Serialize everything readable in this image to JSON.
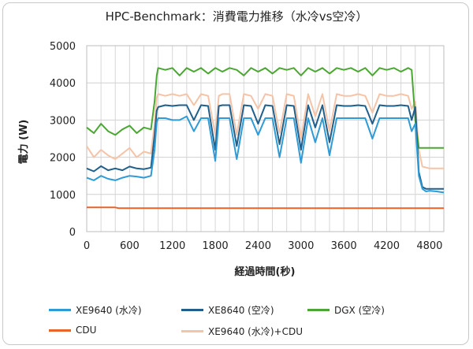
{
  "chart_data": {
    "type": "line",
    "title": "HPC-Benchmark：消費電力推移（水冷vs空冷）",
    "xlabel": "経過時間(秒)",
    "ylabel": "電力 (W)",
    "xlim": [
      0,
      5000
    ],
    "ylim": [
      0,
      5000
    ],
    "xticks": [
      "0",
      "600",
      "1200",
      "1800",
      "2400",
      "3000",
      "3600",
      "4200",
      "4800"
    ],
    "yticks": [
      "0",
      "1000",
      "2000",
      "3000",
      "4000",
      "5000"
    ],
    "series": [
      {
        "name": "XE9640 (水冷)",
        "color": "#2e9bd6",
        "x": [
          0,
          100,
          200,
          300,
          400,
          500,
          600,
          700,
          800,
          900,
          950,
          980,
          1000,
          1100,
          1200,
          1300,
          1400,
          1500,
          1600,
          1700,
          1800,
          1850,
          1900,
          2000,
          2100,
          2200,
          2300,
          2400,
          2500,
          2600,
          2700,
          2800,
          2900,
          3000,
          3100,
          3200,
          3300,
          3400,
          3500,
          3600,
          3700,
          3800,
          3900,
          4000,
          4100,
          4200,
          4300,
          4400,
          4500,
          4550,
          4600,
          4650,
          4700,
          4750,
          4800,
          4900,
          5000
        ],
        "y": [
          1450,
          1380,
          1500,
          1420,
          1380,
          1450,
          1500,
          1480,
          1450,
          1500,
          2200,
          2950,
          3050,
          3050,
          3000,
          3000,
          3100,
          2700,
          3050,
          3050,
          1900,
          3050,
          3050,
          3050,
          1950,
          3050,
          3050,
          2600,
          3050,
          3050,
          2000,
          3050,
          3050,
          1850,
          3050,
          2400,
          3050,
          2050,
          3050,
          3050,
          3050,
          3050,
          3050,
          2500,
          3050,
          3050,
          3050,
          3050,
          3050,
          2700,
          2900,
          1500,
          1150,
          1080,
          1100,
          1080,
          1050
        ]
      },
      {
        "name": "XE8640 (空冷)",
        "color": "#1f5f8b",
        "x": [
          0,
          100,
          200,
          300,
          400,
          500,
          600,
          700,
          800,
          900,
          950,
          980,
          1000,
          1100,
          1200,
          1300,
          1400,
          1500,
          1600,
          1700,
          1800,
          1850,
          1900,
          2000,
          2100,
          2200,
          2300,
          2400,
          2500,
          2600,
          2700,
          2800,
          2900,
          3000,
          3100,
          3200,
          3300,
          3400,
          3500,
          3600,
          3700,
          3800,
          3900,
          4000,
          4100,
          4200,
          4300,
          4400,
          4500,
          4550,
          4600,
          4650,
          4700,
          4750,
          4800,
          4900,
          5000
        ],
        "y": [
          1700,
          1620,
          1760,
          1650,
          1700,
          1650,
          1750,
          1700,
          1680,
          1720,
          2600,
          3250,
          3350,
          3400,
          3380,
          3400,
          3400,
          3000,
          3400,
          3380,
          2200,
          3380,
          3400,
          3400,
          2300,
          3400,
          3380,
          2900,
          3400,
          3380,
          2350,
          3400,
          3380,
          2200,
          3400,
          2800,
          3400,
          2400,
          3400,
          3380,
          3380,
          3400,
          3380,
          2900,
          3400,
          3380,
          3380,
          3400,
          3380,
          3000,
          3350,
          1600,
          1200,
          1150,
          1150,
          1150,
          1150
        ]
      },
      {
        "name": "DGX (空冷)",
        "color": "#4aa832",
        "x": [
          0,
          100,
          200,
          300,
          400,
          500,
          600,
          700,
          800,
          900,
          950,
          980,
          1000,
          1100,
          1200,
          1300,
          1400,
          1500,
          1600,
          1700,
          1800,
          1900,
          2000,
          2100,
          2200,
          2300,
          2400,
          2500,
          2600,
          2700,
          2800,
          2900,
          3000,
          3100,
          3200,
          3300,
          3400,
          3500,
          3600,
          3700,
          3800,
          3900,
          4000,
          4100,
          4200,
          4300,
          4400,
          4500,
          4550,
          4600,
          4650,
          4700,
          4800,
          4900,
          5000
        ],
        "y": [
          2800,
          2650,
          2900,
          2700,
          2600,
          2750,
          2850,
          2650,
          2800,
          2750,
          3500,
          4200,
          4400,
          4350,
          4400,
          4200,
          4400,
          4300,
          4400,
          4250,
          4400,
          4300,
          4400,
          4350,
          4200,
          4400,
          4300,
          4400,
          4250,
          4400,
          4350,
          4400,
          4200,
          4400,
          4300,
          4400,
          4250,
          4400,
          4350,
          4400,
          4300,
          4400,
          4200,
          4400,
          4350,
          4400,
          4300,
          4400,
          4350,
          3000,
          2250,
          2250,
          2250,
          2250,
          2250
        ]
      },
      {
        "name": "CDU",
        "color": "#e8642a",
        "x": [
          0,
          400,
          450,
          1000,
          2000,
          3000,
          4000,
          5000
        ],
        "y": [
          650,
          650,
          630,
          630,
          630,
          630,
          630,
          630
        ]
      },
      {
        "name": "XE9640 (水冷)+CDU",
        "color": "#f5c4a8",
        "x": [
          0,
          100,
          200,
          300,
          400,
          500,
          600,
          700,
          800,
          900,
          950,
          980,
          1000,
          1100,
          1200,
          1300,
          1400,
          1500,
          1600,
          1700,
          1800,
          1850,
          1900,
          2000,
          2100,
          2200,
          2300,
          2400,
          2500,
          2600,
          2700,
          2800,
          2900,
          3000,
          3100,
          3200,
          3300,
          3400,
          3500,
          3600,
          3700,
          3800,
          3900,
          4000,
          4100,
          4200,
          4300,
          4400,
          4500,
          4550,
          4600,
          4650,
          4700,
          4800,
          4900,
          5000
        ],
        "y": [
          2300,
          2000,
          2200,
          2050,
          1950,
          2100,
          2250,
          2000,
          2150,
          2100,
          2900,
          3600,
          3700,
          3650,
          3700,
          3650,
          3700,
          3400,
          3700,
          3650,
          2600,
          3650,
          3700,
          3700,
          2600,
          3700,
          3650,
          3300,
          3700,
          3650,
          2650,
          3700,
          3650,
          2500,
          3700,
          3100,
          3700,
          2700,
          3700,
          3650,
          3650,
          3700,
          3650,
          3200,
          3700,
          3650,
          3650,
          3700,
          3650,
          3300,
          3500,
          2200,
          1750,
          1700,
          1700,
          1700
        ]
      }
    ]
  }
}
